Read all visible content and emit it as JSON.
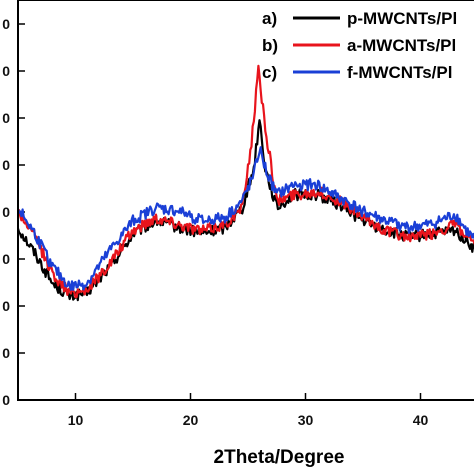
{
  "chart_data": {
    "type": "line",
    "xlabel": "2Theta/Degree",
    "ylabel": "",
    "xlim": [
      5,
      45
    ],
    "x_ticks": [
      10,
      20,
      30,
      40
    ],
    "y_tick_labels": [
      "0",
      "0",
      "0",
      "0",
      "0",
      "0",
      "0",
      "0",
      "0"
    ],
    "legend_position": "top-right",
    "series": [
      {
        "name": "p-MWCNTs/Pl",
        "legend_letter": "a)",
        "color": "#000000",
        "points": [
          [
            5,
            0.52
          ],
          [
            6.5,
            0.44
          ],
          [
            8,
            0.35
          ],
          [
            9.5,
            0.31
          ],
          [
            11,
            0.32
          ],
          [
            13,
            0.4
          ],
          [
            15,
            0.5
          ],
          [
            17,
            0.54
          ],
          [
            19,
            0.52
          ],
          [
            21,
            0.5
          ],
          [
            23,
            0.52
          ],
          [
            24.5,
            0.58
          ],
          [
            25.5,
            0.7
          ],
          [
            26,
            0.85
          ],
          [
            26.5,
            0.7
          ],
          [
            27.5,
            0.58
          ],
          [
            29,
            0.62
          ],
          [
            31,
            0.62
          ],
          [
            33,
            0.59
          ],
          [
            35,
            0.54
          ],
          [
            37,
            0.51
          ],
          [
            39,
            0.49
          ],
          [
            41,
            0.5
          ],
          [
            43,
            0.51
          ],
          [
            44,
            0.48
          ],
          [
            45,
            0.44
          ]
        ]
      },
      {
        "name": "a-MWCNTs/Pl",
        "legend_letter": "b)",
        "color": "#e8141c",
        "points": [
          [
            5,
            0.57
          ],
          [
            6.5,
            0.49
          ],
          [
            8,
            0.38
          ],
          [
            9.5,
            0.32
          ],
          [
            11,
            0.33
          ],
          [
            13,
            0.41
          ],
          [
            15,
            0.51
          ],
          [
            17,
            0.55
          ],
          [
            19,
            0.53
          ],
          [
            21,
            0.51
          ],
          [
            23,
            0.53
          ],
          [
            24.5,
            0.58
          ],
          [
            25.3,
            0.78
          ],
          [
            25.9,
            1.0
          ],
          [
            26.6,
            0.8
          ],
          [
            27.5,
            0.6
          ],
          [
            29,
            0.62
          ],
          [
            31,
            0.63
          ],
          [
            33,
            0.6
          ],
          [
            35,
            0.55
          ],
          [
            37,
            0.51
          ],
          [
            39,
            0.49
          ],
          [
            41,
            0.5
          ],
          [
            43,
            0.53
          ],
          [
            44,
            0.49
          ],
          [
            45,
            0.45
          ]
        ]
      },
      {
        "name": "f-MWCNTs/Pl",
        "legend_letter": "c)",
        "color": "#1a3fd6",
        "points": [
          [
            5,
            0.58
          ],
          [
            6.5,
            0.5
          ],
          [
            8,
            0.4
          ],
          [
            9.5,
            0.34
          ],
          [
            11,
            0.35
          ],
          [
            13,
            0.45
          ],
          [
            15,
            0.54
          ],
          [
            17,
            0.58
          ],
          [
            19,
            0.57
          ],
          [
            21,
            0.54
          ],
          [
            23,
            0.55
          ],
          [
            24.5,
            0.6
          ],
          [
            25.5,
            0.68
          ],
          [
            26,
            0.76
          ],
          [
            26.7,
            0.68
          ],
          [
            27.5,
            0.62
          ],
          [
            29,
            0.65
          ],
          [
            31,
            0.65
          ],
          [
            33,
            0.61
          ],
          [
            35,
            0.57
          ],
          [
            37,
            0.54
          ],
          [
            39,
            0.52
          ],
          [
            41,
            0.53
          ],
          [
            43,
            0.56
          ],
          [
            44,
            0.51
          ],
          [
            45,
            0.47
          ]
        ]
      }
    ]
  }
}
